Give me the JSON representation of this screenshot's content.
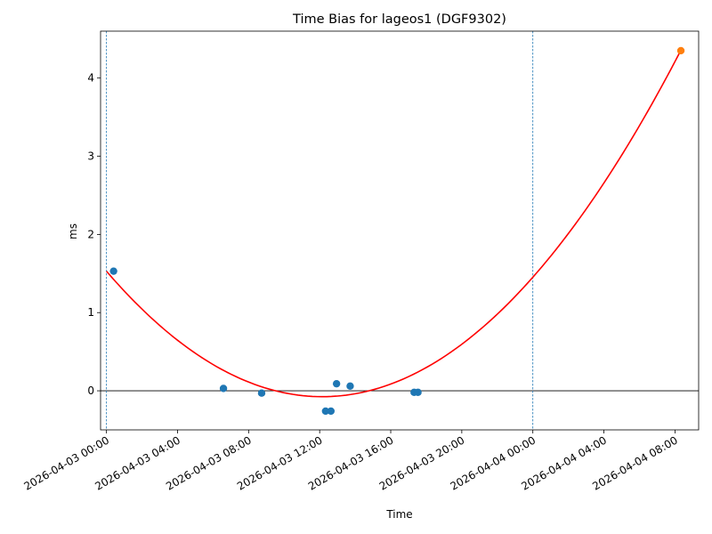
{
  "chart_data": {
    "type": "scatter",
    "title": "Time Bias for lageos1 (DGF9302)",
    "xlabel": "Time",
    "ylabel": "ms",
    "x_ticks": [
      "2026-04-03 00:00",
      "2026-04-03 04:00",
      "2026-04-03 08:00",
      "2026-04-03 12:00",
      "2026-04-03 16:00",
      "2026-04-03 20:00",
      "2026-04-04 00:00",
      "2026-04-04 04:00",
      "2026-04-04 08:00"
    ],
    "y_ticks": [
      0,
      1,
      2,
      3,
      4
    ],
    "xlim": [
      "2026-04-02 23:40",
      "2026-04-04 09:20"
    ],
    "ylim": [
      -0.5,
      4.6
    ],
    "grid": false,
    "legend": "none",
    "reference_lines": {
      "horizontal_y": 0,
      "vertical_x": [
        "2026-04-03 00:00",
        "2026-04-04 00:00"
      ]
    },
    "series": [
      {
        "kind": "points",
        "color": "#1f77b4",
        "points": [
          {
            "x": "2026-04-03 00:24",
            "y": 1.53
          },
          {
            "x": "2026-04-03 06:35",
            "y": 0.03
          },
          {
            "x": "2026-04-03 08:44",
            "y": -0.03
          },
          {
            "x": "2026-04-03 12:20",
            "y": -0.26
          },
          {
            "x": "2026-04-03 12:38",
            "y": -0.26
          },
          {
            "x": "2026-04-03 12:57",
            "y": 0.09
          },
          {
            "x": "2026-04-03 13:43",
            "y": 0.06
          },
          {
            "x": "2026-04-03 17:19",
            "y": -0.02
          },
          {
            "x": "2026-04-03 17:32",
            "y": -0.02
          }
        ]
      },
      {
        "kind": "points",
        "color": "#ff7f0e",
        "points": [
          {
            "x": "2026-04-04 08:20",
            "y": 4.35
          }
        ]
      },
      {
        "kind": "line",
        "color": "#ff0000",
        "points": [
          {
            "x": "2026-04-03 00:00",
            "y": 1.58
          },
          {
            "x": "2026-04-03 04:00",
            "y": 0.62
          },
          {
            "x": "2026-04-03 08:00",
            "y": 0.05
          },
          {
            "x": "2026-04-03 12:28",
            "y": -0.15
          },
          {
            "x": "2026-04-03 16:00",
            "y": 0.18
          },
          {
            "x": "2026-04-03 20:00",
            "y": 0.69
          },
          {
            "x": "2026-04-04 00:00",
            "y": 1.38
          },
          {
            "x": "2026-04-04 04:00",
            "y": 2.66
          },
          {
            "x": "2026-04-04 08:20",
            "y": 4.35
          }
        ]
      }
    ]
  }
}
